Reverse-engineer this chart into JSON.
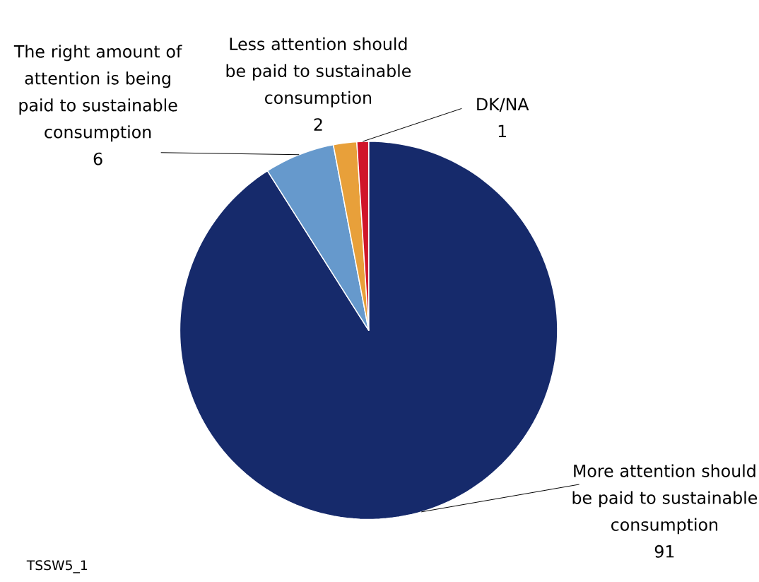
{
  "chart_data": {
    "type": "pie",
    "categories": [
      "More attention should be paid to sustainable consumption",
      "The right amount of attention is being paid to sustainable consumption",
      "Less attention should be paid to sustainable consumption",
      "DK/NA"
    ],
    "values": [
      91,
      6,
      2,
      1
    ],
    "colors": [
      "#162a6b",
      "#6699cc",
      "#e8a03a",
      "#d0152a"
    ],
    "data_labels": true,
    "annotations": [
      "TSSW5_1"
    ]
  }
}
